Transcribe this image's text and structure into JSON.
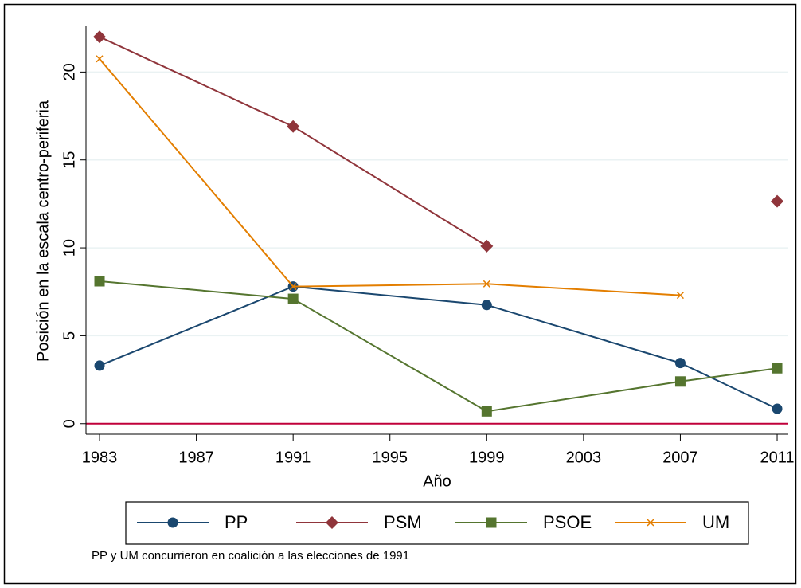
{
  "chart_data": {
    "type": "line",
    "x": [
      1983,
      1991,
      1999,
      2007,
      2011
    ],
    "x_label": "Año",
    "y_label": "Posición en la escala centro-periferia",
    "series": [
      {
        "name": "PP",
        "color": "#1a476f",
        "marker": "circle",
        "values": [
          3.3,
          7.8,
          6.75,
          3.45,
          0.85
        ]
      },
      {
        "name": "PSM",
        "color": "#90353b",
        "marker": "diamond",
        "values": [
          22,
          16.9,
          10.1,
          null,
          12.65
        ]
      },
      {
        "name": "PSOE",
        "color": "#55752f",
        "marker": "square",
        "values": [
          8.1,
          7.1,
          0.7,
          2.4,
          3.15
        ]
      },
      {
        "name": "UM",
        "color": "#e37e00",
        "marker": "x",
        "values": [
          20.75,
          7.8,
          7.95,
          7.3,
          null
        ]
      }
    ],
    "xlim": [
      1982.44,
      2011.46
    ],
    "xticks": [
      1983,
      1987,
      1991,
      1995,
      1999,
      2003,
      2007,
      2011
    ],
    "ylim": [
      -0.6,
      22.6
    ],
    "yticks": [
      0,
      5,
      10,
      15,
      20
    ],
    "grid": true,
    "reference_line": {
      "value": 0,
      "color": "#c0003a"
    },
    "legend": "bottom",
    "note": "PP y UM concurrieron en coalición a las elecciones de 1991"
  }
}
